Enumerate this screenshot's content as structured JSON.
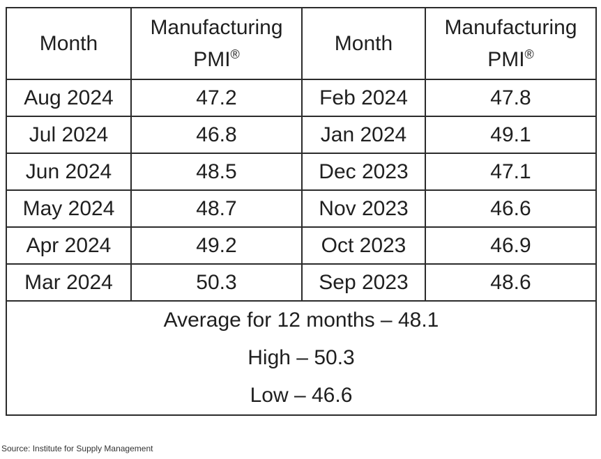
{
  "chart_data": {
    "type": "table",
    "columns": [
      "Month",
      "Manufacturing PMI®",
      "Month",
      "Manufacturing PMI®"
    ],
    "header": {
      "month_label": "Month",
      "pmi_label_line1": "Manufacturing",
      "pmi_label_line2": "PMI",
      "pmi_mark": "®"
    },
    "rows": [
      {
        "left_month": "Aug 2024",
        "left_pmi": "47.2",
        "right_month": "Feb 2024",
        "right_pmi": "47.8"
      },
      {
        "left_month": "Jul 2024",
        "left_pmi": "46.8",
        "right_month": "Jan 2024",
        "right_pmi": "49.1"
      },
      {
        "left_month": "Jun 2024",
        "left_pmi": "48.5",
        "right_month": "Dec 2023",
        "right_pmi": "47.1"
      },
      {
        "left_month": "May 2024",
        "left_pmi": "48.7",
        "right_month": "Nov 2023",
        "right_pmi": "46.6"
      },
      {
        "left_month": "Apr 2024",
        "left_pmi": "49.2",
        "right_month": "Oct 2023",
        "right_pmi": "46.9"
      },
      {
        "left_month": "Mar 2024",
        "left_pmi": "50.3",
        "right_month": "Sep 2023",
        "right_pmi": "48.6"
      }
    ],
    "summary": {
      "average": "Average for 12 months – 48.1",
      "high": "High – 50.3",
      "low": "Low – 46.6"
    }
  },
  "source": "Source: Institute for Supply Management"
}
